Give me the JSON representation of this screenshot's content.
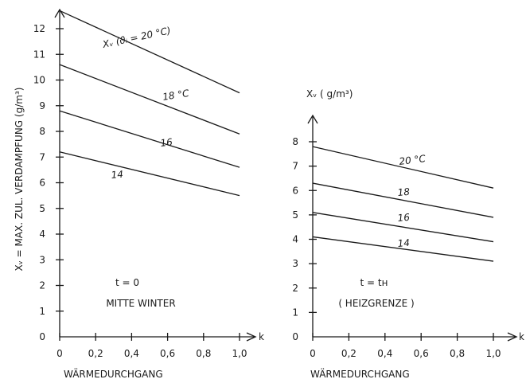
{
  "chart_data": [
    {
      "type": "line",
      "ylabel": "Xᵥ  =  MAX. ZUL. VERDAMPFUNG  (g/m³)",
      "xlabel": "WÄRMEDURCHGANG",
      "x_axis_symbol": "k",
      "xlim": [
        0,
        1.0
      ],
      "ylim": [
        0,
        13
      ],
      "x_ticks": [
        "0",
        "0,2",
        "0,4",
        "0,6",
        "0,8",
        "1,0"
      ],
      "y_ticks": [
        "0",
        "1",
        "2",
        "3",
        "4",
        "5",
        "6",
        "7",
        "8",
        "9",
        "10",
        "11",
        "12"
      ],
      "annotation_lines": [
        "t = 0",
        "MITTE WINTER"
      ],
      "series": [
        {
          "name": "Xᵥ (ϑᵢ = 20 °C)",
          "x": [
            0,
            1.0
          ],
          "y": [
            12.7,
            9.5
          ]
        },
        {
          "name": "18 °C",
          "x": [
            0,
            1.0
          ],
          "y": [
            10.6,
            7.9
          ]
        },
        {
          "name": "16",
          "x": [
            0,
            1.0
          ],
          "y": [
            8.8,
            6.6
          ]
        },
        {
          "name": "14",
          "x": [
            0,
            1.0
          ],
          "y": [
            7.2,
            5.5
          ]
        }
      ]
    },
    {
      "type": "line",
      "ylabel": "Xᵥ  ( g/m³)",
      "xlabel": "WÄRMEDURCHGANG",
      "x_axis_symbol": "k",
      "xlim": [
        0,
        1.0
      ],
      "ylim": [
        0,
        8
      ],
      "x_ticks": [
        "0",
        "0,2",
        "0,4",
        "0,6",
        "0,8",
        "1,0"
      ],
      "y_ticks": [
        "0",
        "1",
        "2",
        "3",
        "4",
        "5",
        "6",
        "7",
        "8"
      ],
      "annotation_lines": [
        "t = tʜ",
        "( HEIZGRENZE )"
      ],
      "series": [
        {
          "name": "20 °C",
          "x": [
            0,
            1.0
          ],
          "y": [
            7.8,
            6.1
          ]
        },
        {
          "name": "18",
          "x": [
            0,
            1.0
          ],
          "y": [
            6.3,
            4.9
          ]
        },
        {
          "name": "16",
          "x": [
            0,
            1.0
          ],
          "y": [
            5.1,
            3.9
          ]
        },
        {
          "name": "14",
          "x": [
            0,
            1.0
          ],
          "y": [
            4.1,
            3.1
          ]
        }
      ]
    }
  ]
}
